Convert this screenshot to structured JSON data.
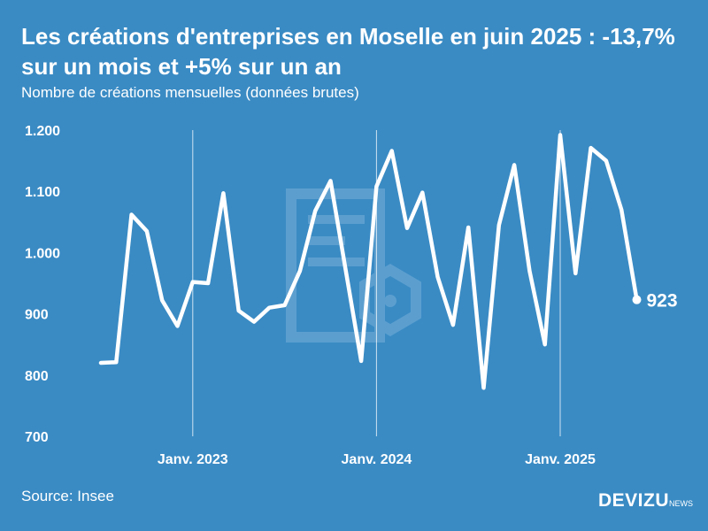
{
  "header": {
    "title": "Les créations d'entreprises en Moselle en juin 2025 : -13,7% sur un mois et +5% sur un an",
    "subtitle": "Nombre de créations mensuelles (données brutes)"
  },
  "footer": {
    "source": "Source: Insee",
    "logo_main": "DEVIZU",
    "logo_sub": "NEWS"
  },
  "colors": {
    "background": "#3a8bc4",
    "line": "#ffffff",
    "watermark": "#6aa9d6"
  },
  "chart_data": {
    "type": "line",
    "title": "Les créations d'entreprises en Moselle en juin 2025 : -13,7% sur un mois et +5% sur un an",
    "subtitle": "Nombre de créations mensuelles (données brutes)",
    "xlabel": "",
    "ylabel": "",
    "ylim": [
      700,
      1200
    ],
    "yticks": [
      700,
      800,
      900,
      1000,
      1100,
      1200
    ],
    "ytick_labels": [
      "700",
      "800",
      "900",
      "1.000",
      "1.100",
      "1.200"
    ],
    "xtick_labels": [
      {
        "label": "Janv. 2023",
        "index": 6
      },
      {
        "label": "Janv. 2024",
        "index": 18
      },
      {
        "label": "Janv. 2025",
        "index": 30
      }
    ],
    "grid": "vertical lines at January",
    "series": [
      {
        "name": "Créations mensuelles",
        "start": "2022-07",
        "end": "2025-06",
        "values": [
          820,
          821,
          1062,
          1035,
          922,
          880,
          952,
          950,
          1097,
          905,
          887,
          910,
          914,
          970,
          1068,
          1117,
          970,
          823,
          1108,
          1166,
          1040,
          1098,
          960,
          882,
          1041,
          779,
          1045,
          1143,
          970,
          850,
          1192,
          966,
          1171,
          1150,
          1070,
          923
        ]
      }
    ],
    "end_label": "923"
  }
}
